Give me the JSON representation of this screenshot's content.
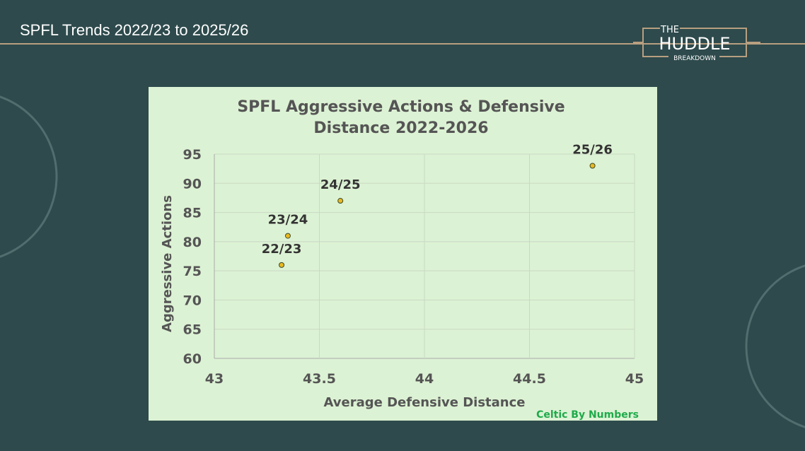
{
  "header": {
    "title": "SPFL Trends 2022/23 to 2025/26"
  },
  "logo": {
    "line1": "THE",
    "line2": "HUDDLE",
    "line3": "BREAKDOWN"
  },
  "colors": {
    "background": "#2e4a4c",
    "chart_background": "#dcf2d4",
    "marker": "#e8b820",
    "accent_rule": "#b89f80",
    "credit": "#1faa4a"
  },
  "chart_data": {
    "type": "scatter",
    "title_line1": "SPFL Aggressive Actions  & Defensive",
    "title_line2": "Distance 2022-2026",
    "xlabel": "Average Defensive Distance",
    "ylabel": "Aggressive Actions",
    "xlim": [
      43,
      45
    ],
    "ylim": [
      60,
      95
    ],
    "xticks": [
      "43",
      "43.5",
      "44",
      "44.5",
      "45"
    ],
    "yticks": [
      "60",
      "65",
      "70",
      "75",
      "80",
      "85",
      "90",
      "95"
    ],
    "grid": true,
    "points": [
      {
        "label": "22/23",
        "x": 43.32,
        "y": 76
      },
      {
        "label": "23/24",
        "x": 43.35,
        "y": 81
      },
      {
        "label": "24/25",
        "x": 43.6,
        "y": 87
      },
      {
        "label": "25/26",
        "x": 44.8,
        "y": 93
      }
    ],
    "credit": "Celtic By Numbers"
  }
}
